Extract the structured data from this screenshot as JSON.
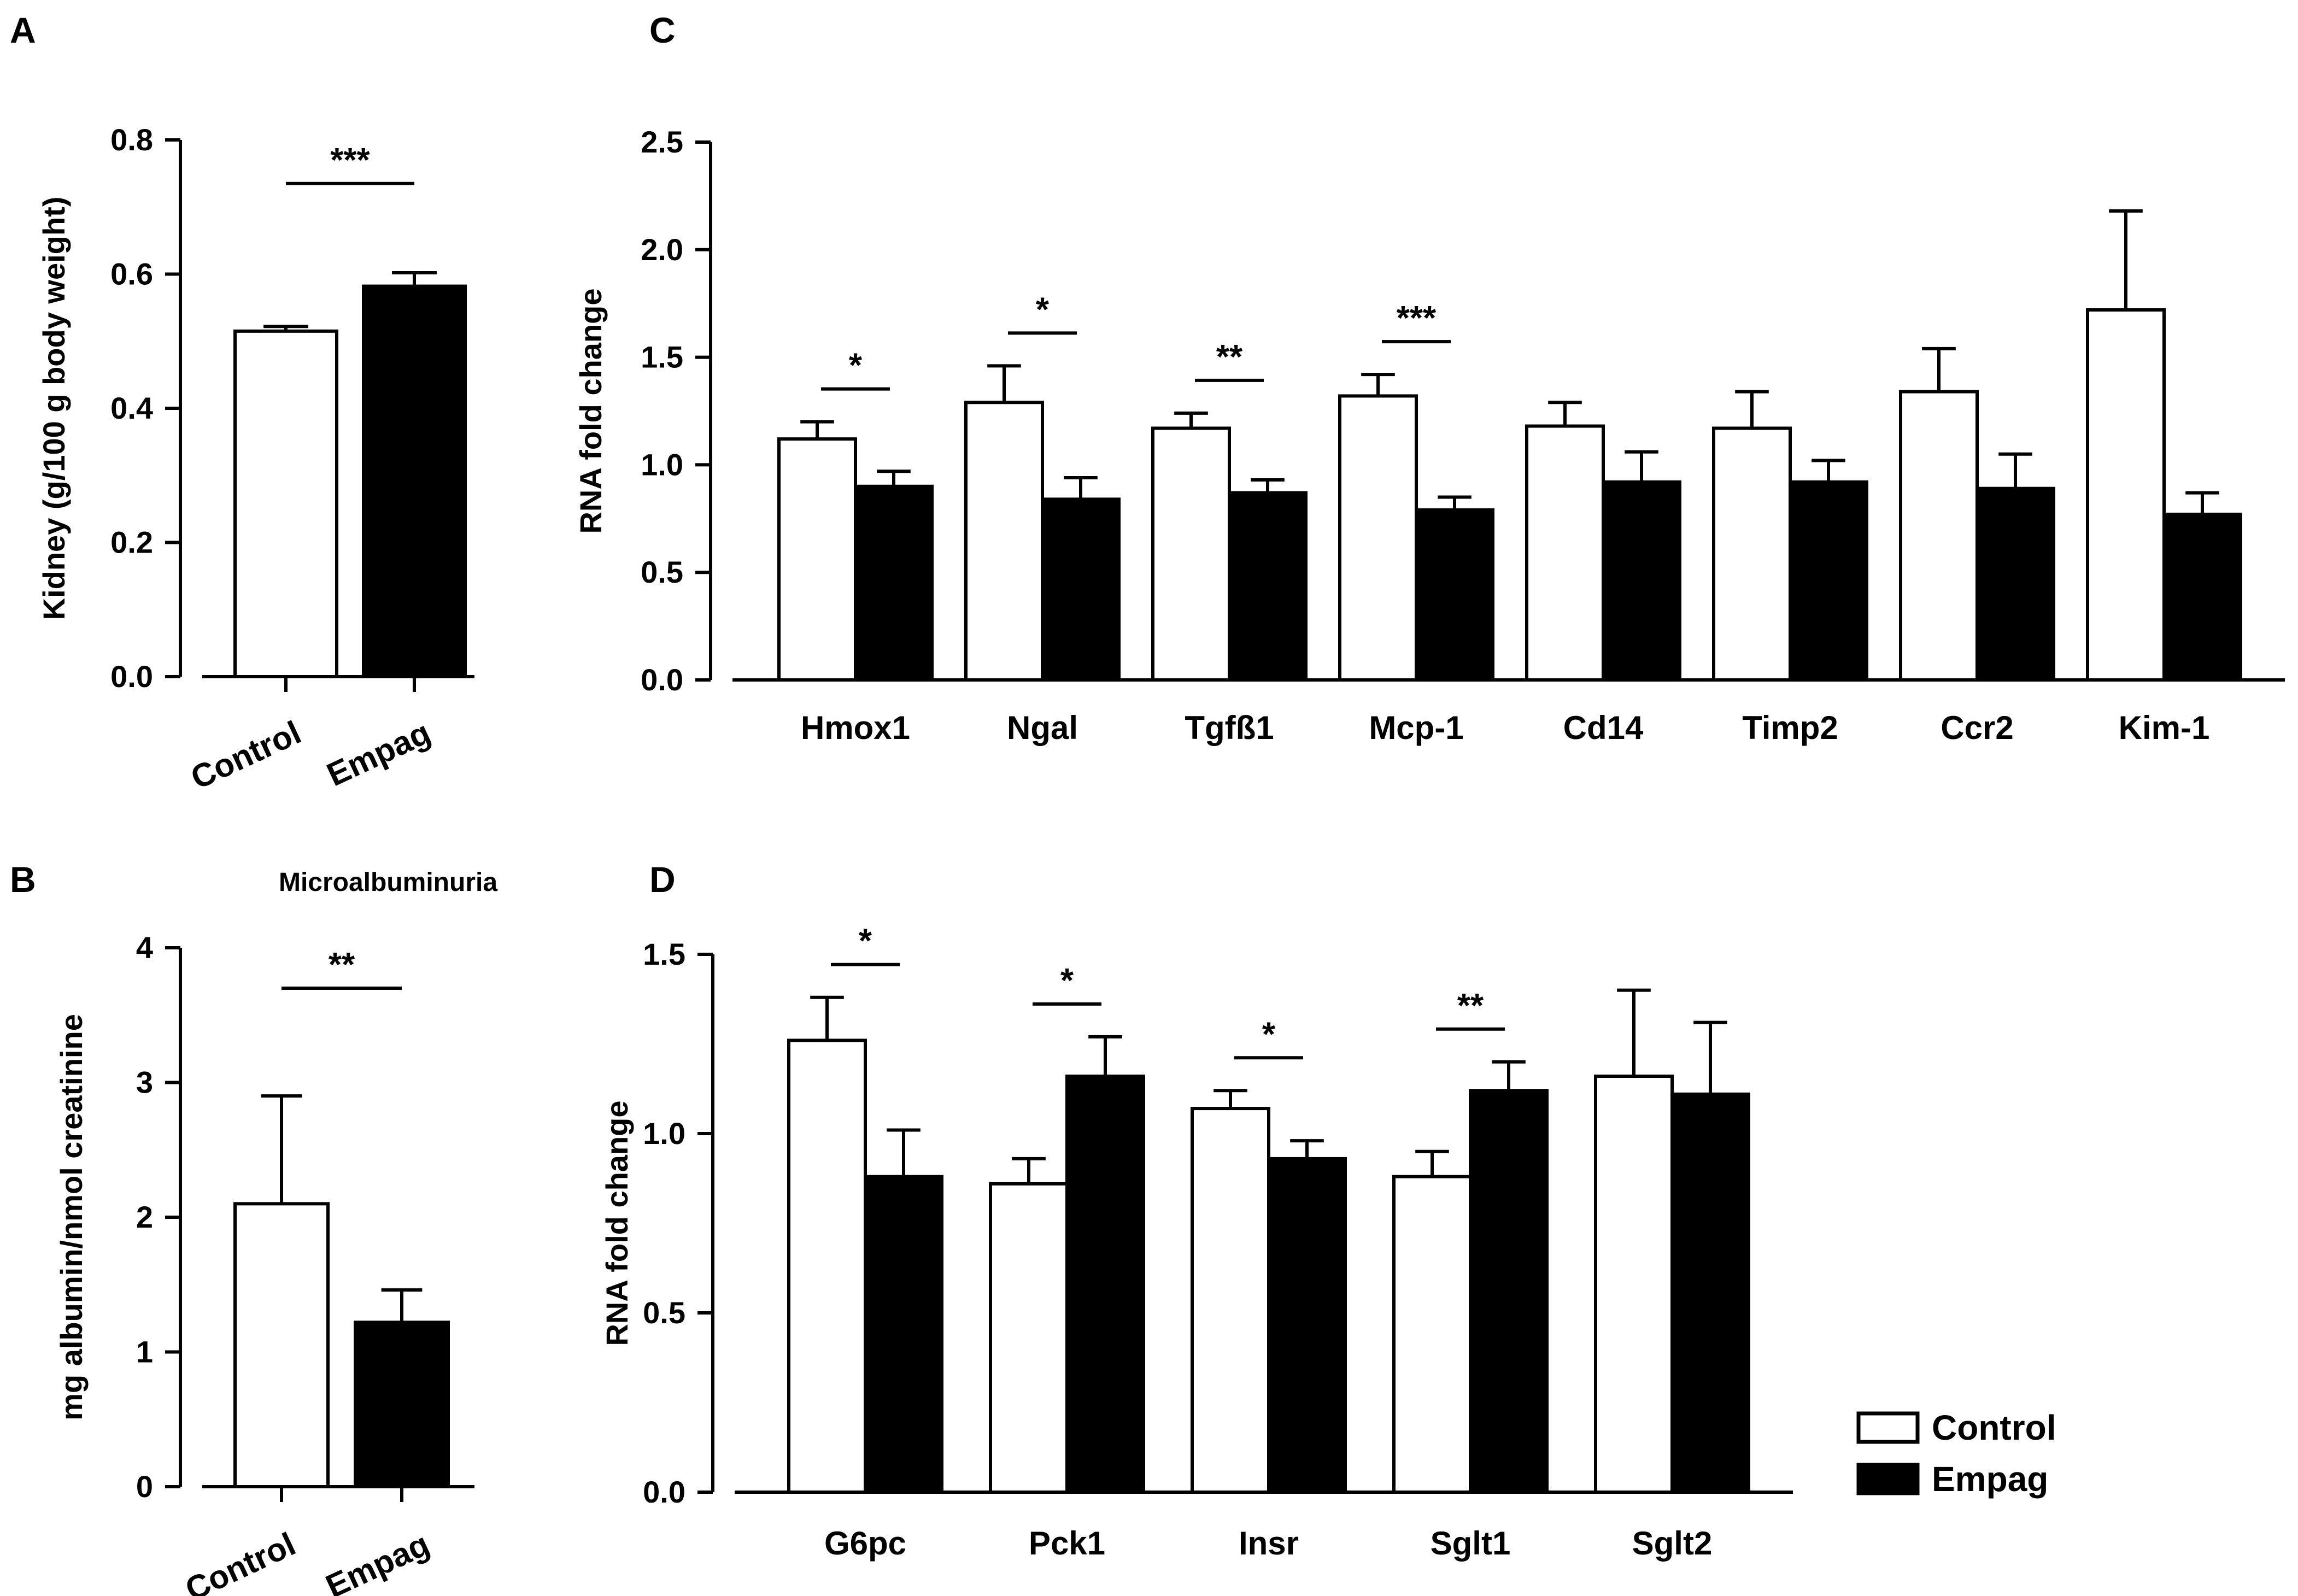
{
  "chart_data": [
    {
      "panel": "A",
      "type": "bar",
      "title": "",
      "xlabel": "",
      "ylabel": "Kidney (g/100 g body weight)",
      "ylim": [
        0,
        0.8
      ],
      "yticks": [
        "0.0",
        "0.2",
        "0.4",
        "0.6",
        "0.8"
      ],
      "categories": [
        "Control",
        "Empag"
      ],
      "values": [
        0.515,
        0.582
      ],
      "errors": [
        0.007,
        0.02
      ],
      "fills": [
        "#ffffff",
        "#000000"
      ],
      "significance": [
        "***"
      ]
    },
    {
      "panel": "B",
      "type": "bar",
      "title": "Microalbuminuria",
      "xlabel": "",
      "ylabel": "mg albumin/nmol creatinine",
      "ylim": [
        0,
        4
      ],
      "yticks": [
        "0",
        "1",
        "2",
        "3",
        "4"
      ],
      "categories": [
        "Control",
        "Empag"
      ],
      "values": [
        2.1,
        1.22
      ],
      "errors": [
        0.8,
        0.24
      ],
      "fills": [
        "#ffffff",
        "#000000"
      ],
      "significance": [
        "**"
      ]
    },
    {
      "panel": "C",
      "type": "bar",
      "title": "",
      "xlabel": "",
      "ylabel": "RNA fold change",
      "ylim": [
        0,
        2.5
      ],
      "yticks": [
        "0.0",
        "0.5",
        "1.0",
        "1.5",
        "2.0",
        "2.5"
      ],
      "categories": [
        "Hmox1",
        "Ngal",
        "Tgfß1",
        "Mcp-1",
        "Cd14",
        "Timp2",
        "Ccr2",
        "Kim-1"
      ],
      "series": [
        {
          "name": "Control",
          "values": [
            1.12,
            1.29,
            1.17,
            1.32,
            1.18,
            1.17,
            1.34,
            1.72
          ],
          "errors": [
            0.08,
            0.17,
            0.07,
            0.1,
            0.11,
            0.17,
            0.2,
            0.46
          ]
        },
        {
          "name": "Empag",
          "values": [
            0.9,
            0.84,
            0.87,
            0.79,
            0.92,
            0.92,
            0.89,
            0.77
          ],
          "errors": [
            0.07,
            0.1,
            0.06,
            0.06,
            0.14,
            0.1,
            0.16,
            0.1
          ]
        }
      ],
      "significance": [
        "*",
        "*",
        "**",
        "***",
        "",
        "",
        "",
        ""
      ]
    },
    {
      "panel": "D",
      "type": "bar",
      "title": "",
      "xlabel": "",
      "ylabel": "RNA fold change",
      "ylim": [
        0,
        1.5
      ],
      "yticks": [
        "0.0",
        "0.5",
        "1.0",
        "1.5"
      ],
      "categories": [
        "G6pc",
        "Pck1",
        "Insr",
        "Sglt1",
        "Sglt2"
      ],
      "series": [
        {
          "name": "Control",
          "values": [
            1.26,
            0.86,
            1.07,
            0.88,
            1.16
          ],
          "errors": [
            0.12,
            0.07,
            0.05,
            0.07,
            0.24
          ]
        },
        {
          "name": "Empag",
          "values": [
            0.88,
            1.16,
            0.93,
            1.12,
            1.11
          ],
          "errors": [
            0.13,
            0.11,
            0.05,
            0.08,
            0.2
          ]
        }
      ],
      "significance": [
        "*",
        "*",
        "*",
        "**",
        ""
      ]
    }
  ],
  "legend": {
    "items": [
      {
        "label": "Control",
        "fill": "#ffffff"
      },
      {
        "label": "Empag",
        "fill": "#000000"
      }
    ]
  }
}
